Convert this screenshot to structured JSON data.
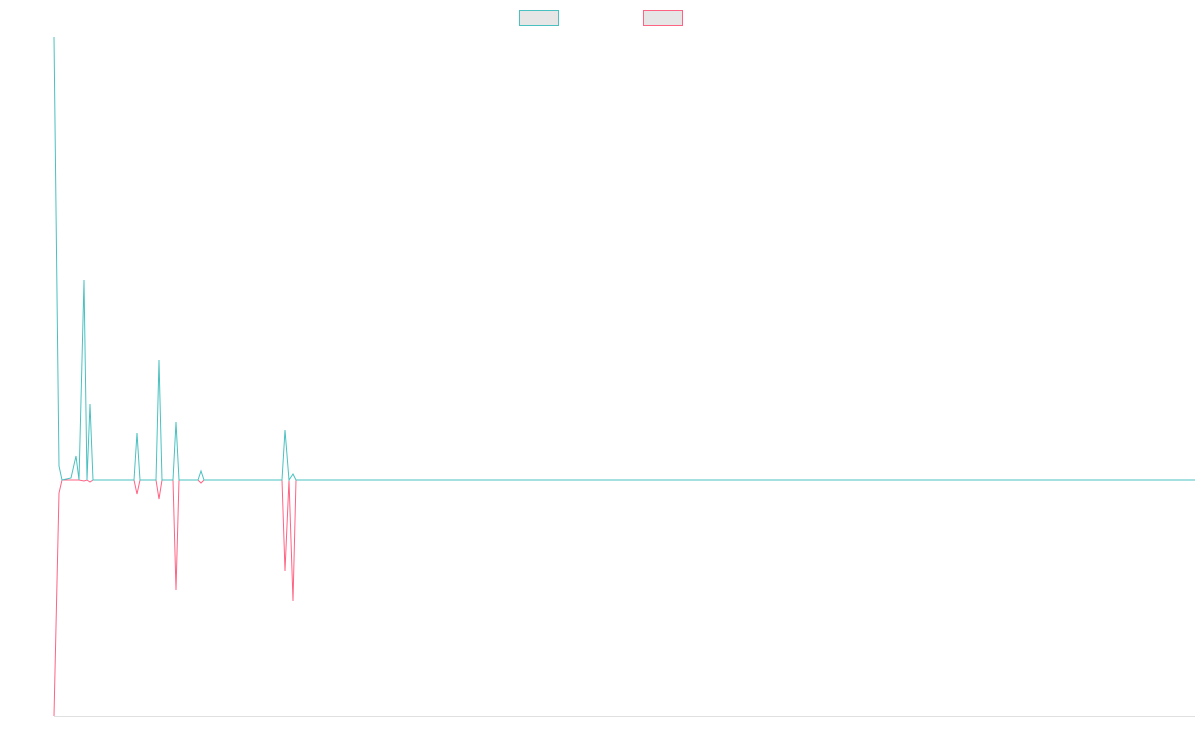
{
  "chart_data": {
    "type": "line",
    "x": [
      0,
      5,
      8,
      17,
      22,
      25,
      30,
      33,
      36,
      39,
      80,
      83,
      86,
      102,
      105,
      108,
      119,
      122,
      125,
      144,
      147,
      150,
      228,
      231,
      235,
      239,
      242,
      1141
    ],
    "series": [
      {
        "color": "#4bc0c0",
        "values": [
          443,
          14,
          0,
          2,
          24,
          0,
          200,
          0,
          76,
          0,
          0,
          47,
          0,
          0,
          120,
          0,
          0,
          58,
          0,
          0,
          9,
          0,
          0,
          50,
          0,
          6,
          0,
          0
        ]
      },
      {
        "color": "#ff6384",
        "values": [
          -236,
          -13,
          0,
          0,
          0,
          0,
          -1,
          0,
          -2,
          0,
          0,
          -14,
          0,
          0,
          -19,
          0,
          0,
          -110,
          0,
          0,
          -3,
          0,
          0,
          -91,
          0,
          -121,
          0,
          0
        ]
      }
    ],
    "xlim": [
      0,
      1141
    ],
    "ylim": [
      -236,
      450
    ],
    "legend": "top"
  }
}
